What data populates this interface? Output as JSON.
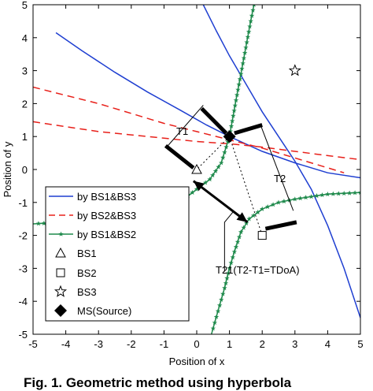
{
  "chart_data": {
    "type": "line",
    "title": "",
    "xlabel": "Position of x",
    "ylabel": "Position of y",
    "xlim": [
      -5,
      5
    ],
    "ylim": [
      -5,
      5
    ],
    "xticks": [
      "-5",
      "-4",
      "-3",
      "-2",
      "-1",
      "0",
      "1",
      "2",
      "3",
      "4",
      "5"
    ],
    "yticks": [
      "5",
      "4",
      "3",
      "2",
      "1",
      "0",
      "-1",
      "-2",
      "-3",
      "-4",
      "-5"
    ],
    "grid": false,
    "legend_position": "lower-left",
    "series": [
      {
        "name": "by BS1&BS3",
        "color": "#1f3fd1",
        "style": "solid",
        "branches": [
          [
            [
              -4.3,
              4.15
            ],
            [
              -3.5,
              3.6
            ],
            [
              -2.5,
              2.95
            ],
            [
              -1.5,
              2.35
            ],
            [
              -0.5,
              1.8
            ],
            [
              0.3,
              1.35
            ],
            [
              1.0,
              1.0
            ],
            [
              2.0,
              0.55
            ],
            [
              3.0,
              0.2
            ],
            [
              4.0,
              -0.1
            ],
            [
              5.0,
              -0.25
            ]
          ],
          [
            [
              0.2,
              5.0
            ],
            [
              0.6,
              4.2
            ],
            [
              1.0,
              3.45
            ],
            [
              1.5,
              2.6
            ],
            [
              2.0,
              1.75
            ],
            [
              2.5,
              1.0
            ],
            [
              3.0,
              0.25
            ],
            [
              3.5,
              -0.6
            ],
            [
              4.0,
              -1.7
            ],
            [
              4.5,
              -3.0
            ],
            [
              5.0,
              -4.5
            ]
          ]
        ]
      },
      {
        "name": "by BS2&BS3",
        "color": "#e8201a",
        "style": "dashed",
        "branches": [
          [
            [
              -5.0,
              2.5
            ],
            [
              -4.0,
              2.25
            ],
            [
              -3.0,
              2.0
            ],
            [
              -2.0,
              1.7
            ],
            [
              -1.0,
              1.4
            ],
            [
              0.0,
              1.15
            ],
            [
              1.0,
              0.9
            ],
            [
              2.0,
              0.65
            ],
            [
              3.0,
              0.35
            ],
            [
              4.0,
              0.05
            ],
            [
              4.5,
              -0.1
            ]
          ],
          [
            [
              -5.0,
              1.45
            ],
            [
              -4.0,
              1.3
            ],
            [
              -3.0,
              1.15
            ],
            [
              -2.0,
              1.05
            ],
            [
              -1.0,
              0.95
            ],
            [
              0.0,
              0.85
            ],
            [
              1.0,
              0.78
            ],
            [
              2.0,
              0.68
            ],
            [
              3.0,
              0.55
            ],
            [
              4.0,
              0.42
            ],
            [
              5.0,
              0.3
            ]
          ]
        ]
      },
      {
        "name": "by BS1&BS2",
        "color": "#1f8a4c",
        "style": "solid-star",
        "branches": [
          [
            [
              1.75,
              5.0
            ],
            [
              1.65,
              4.5
            ],
            [
              1.5,
              3.7
            ],
            [
              1.35,
              2.9
            ],
            [
              1.2,
              2.1
            ],
            [
              1.0,
              1.0
            ],
            [
              0.75,
              0.2
            ],
            [
              0.4,
              -0.3
            ],
            [
              0.0,
              -0.6
            ],
            [
              -0.4,
              -0.9
            ],
            [
              -0.8,
              -1.1
            ],
            [
              -1.3,
              -1.3
            ],
            [
              -2.0,
              -1.45
            ],
            [
              -3.0,
              -1.55
            ],
            [
              -4.0,
              -1.6
            ],
            [
              -5.0,
              -1.65
            ]
          ],
          [
            [
              5.0,
              -0.7
            ],
            [
              4.0,
              -0.75
            ],
            [
              3.0,
              -0.9
            ],
            [
              2.5,
              -1.0
            ],
            [
              2.0,
              -1.2
            ],
            [
              1.6,
              -1.5
            ],
            [
              1.35,
              -1.9
            ],
            [
              1.15,
              -2.5
            ],
            [
              1.0,
              -3.0
            ],
            [
              0.85,
              -3.6
            ],
            [
              0.65,
              -4.3
            ],
            [
              0.45,
              -5.0
            ]
          ]
        ]
      }
    ],
    "markers": [
      {
        "name": "BS1",
        "x": 0,
        "y": 0,
        "symbol": "triangle"
      },
      {
        "name": "BS2",
        "x": 2,
        "y": -2,
        "symbol": "square"
      },
      {
        "name": "BS3",
        "x": 3,
        "y": 3,
        "symbol": "star"
      },
      {
        "name": "MS(Source)",
        "x": 1,
        "y": 1,
        "symbol": "diamond"
      }
    ],
    "annotations": {
      "T1": "T1",
      "T2": "T2",
      "T21": "T21(T2-T1=TDoA)"
    }
  },
  "caption": "Fig. 1. Geometric method using hyperbola"
}
